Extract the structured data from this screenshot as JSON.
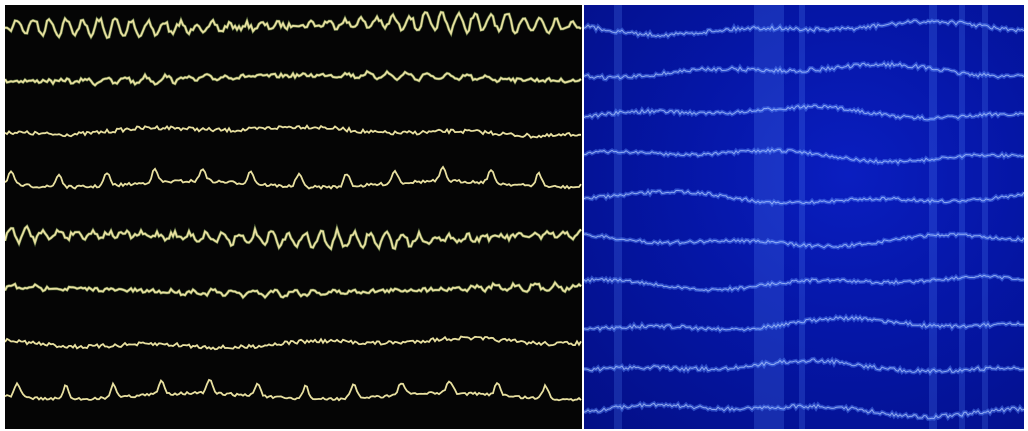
{
  "colors": {
    "frame": "#ffffff",
    "left_background": "#050505",
    "trace": "#e8e0a0",
    "trace_highlight": "#9bbf6a",
    "right_background": "#0416a0",
    "right_trace": "#5a8bff",
    "right_glow": "#b8d0ff"
  },
  "left_traces": [
    {
      "kind": "fast-oscillation",
      "amplitude": 0.9
    },
    {
      "kind": "medium-oscillation",
      "amplitude": 0.5
    },
    {
      "kind": "low-noise",
      "amplitude": 0.3
    },
    {
      "kind": "spiky-slow-wave",
      "amplitude": 0.8
    },
    {
      "kind": "fast-oscillation",
      "amplitude": 0.85
    },
    {
      "kind": "medium-oscillation",
      "amplitude": 0.45
    },
    {
      "kind": "low-noise",
      "amplitude": 0.3
    },
    {
      "kind": "spiky-slow-wave",
      "amplitude": 0.8
    }
  ],
  "right_traces": [
    {
      "kind": "noisy-band",
      "amplitude": 0.5
    },
    {
      "kind": "noisy-band",
      "amplitude": 0.5
    },
    {
      "kind": "noisy-band",
      "amplitude": 0.45
    },
    {
      "kind": "noisy-band",
      "amplitude": 0.4
    },
    {
      "kind": "noisy-band",
      "amplitude": 0.4
    },
    {
      "kind": "noisy-band",
      "amplitude": 0.4
    },
    {
      "kind": "noisy-band",
      "amplitude": 0.4
    },
    {
      "kind": "noisy-band",
      "amplitude": 0.45
    },
    {
      "kind": "noisy-band",
      "amplitude": 0.5
    },
    {
      "kind": "noisy-band",
      "amplitude": 0.5
    }
  ]
}
